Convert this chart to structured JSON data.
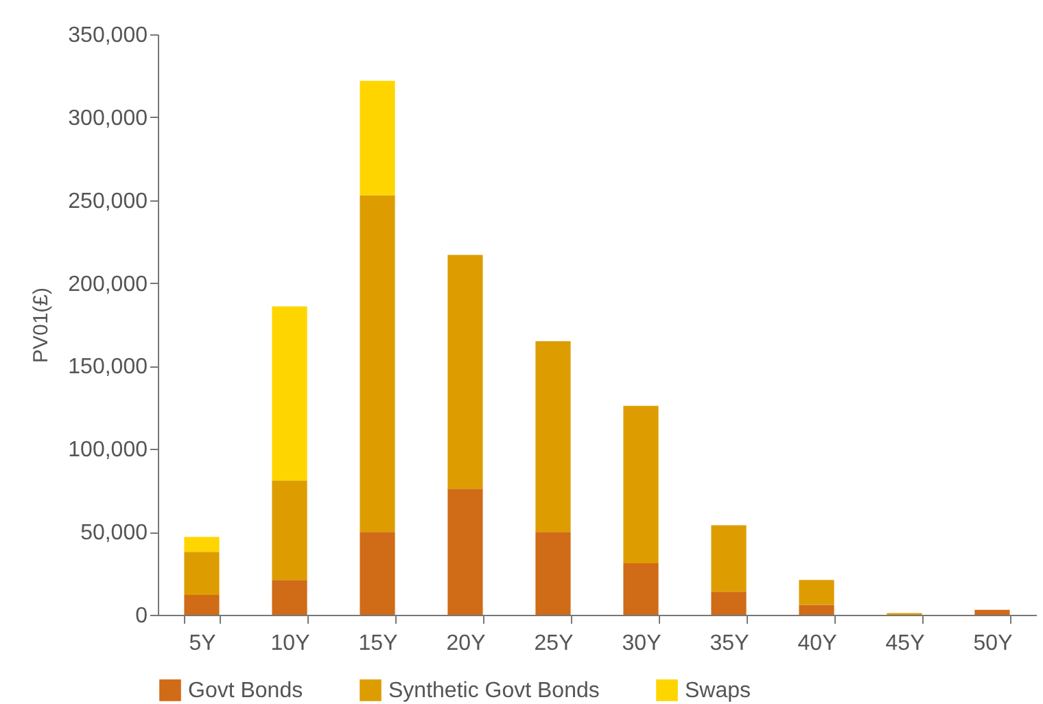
{
  "chart_data": {
    "type": "bar",
    "stacked": true,
    "ylabel": "PV01(£)",
    "categories": [
      "5Y",
      "10Y",
      "15Y",
      "20Y",
      "25Y",
      "30Y",
      "35Y",
      "40Y",
      "45Y",
      "50Y"
    ],
    "ylim": [
      0,
      350000
    ],
    "yticks": [
      {
        "value": 0,
        "label": "0"
      },
      {
        "value": 50000,
        "label": "50,000"
      },
      {
        "value": 100000,
        "label": "100,000"
      },
      {
        "value": 150000,
        "label": "150,000"
      },
      {
        "value": 200000,
        "label": "200,000"
      },
      {
        "value": 250000,
        "label": "250,000"
      },
      {
        "value": 300000,
        "label": "300,000"
      },
      {
        "value": 350000,
        "label": "350,000"
      }
    ],
    "series": [
      {
        "name": "Govt Bonds",
        "color": "#d06b17",
        "values": [
          12000,
          21000,
          50000,
          76000,
          50000,
          31000,
          14000,
          6000,
          null,
          3000
        ]
      },
      {
        "name": "Synthetic Govt Bonds",
        "color": "#dd9d00",
        "values": [
          26000,
          60000,
          203000,
          141000,
          115000,
          95000,
          40000,
          15000,
          1000,
          null
        ]
      },
      {
        "name": "Swaps",
        "color": "#ffd500",
        "values": [
          9000,
          105000,
          69000,
          null,
          null,
          null,
          null,
          null,
          null,
          null
        ]
      }
    ],
    "grid": false,
    "legend": "bottom"
  }
}
